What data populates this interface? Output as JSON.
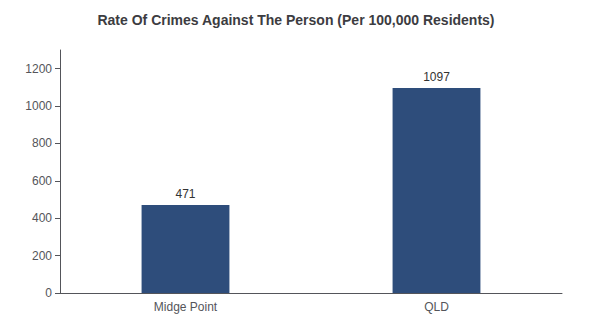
{
  "chart_data": {
    "type": "bar",
    "title": "Rate Of Crimes Against The Person (Per 100,000 Residents)",
    "categories": [
      "Midge Point",
      "QLD"
    ],
    "values": [
      471,
      1097
    ],
    "color": "#2e4d7b",
    "ylim": [
      0,
      1300
    ],
    "yticks": [
      0,
      200,
      400,
      600,
      800,
      1000,
      1200
    ],
    "grid": false,
    "data_labels": true
  }
}
